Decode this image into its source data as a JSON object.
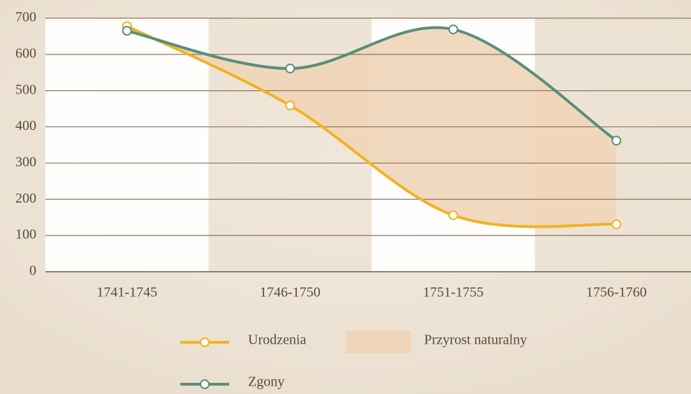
{
  "chart_data": {
    "type": "line",
    "categories": [
      "1741-1745",
      "1746-1750",
      "1751-1755",
      "1756-1760"
    ],
    "series": [
      {
        "name": "Urodzenia",
        "color": "#f0b323",
        "values": [
          678,
          459,
          156,
          131
        ]
      },
      {
        "name": "Zgony",
        "color": "#5a8f78",
        "values": [
          665,
          561,
          669,
          362
        ]
      }
    ],
    "area": {
      "name": "Przyrost naturalny",
      "color": "#f0d5b8"
    },
    "ylim": [
      0,
      700
    ],
    "yticks": [
      0,
      100,
      200,
      300,
      400,
      500,
      600,
      700
    ],
    "grid": true
  }
}
